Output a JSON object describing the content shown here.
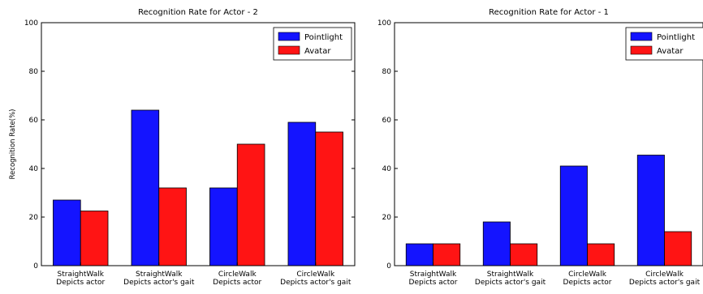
{
  "chart_data": [
    {
      "type": "bar",
      "title": "Recognition Rate for Actor - 2",
      "xlabel": "",
      "ylabel": "Recognition Rate(%)",
      "ylim": [
        0,
        100
      ],
      "yticks": [
        0,
        20,
        40,
        60,
        80,
        100
      ],
      "categories": [
        [
          "StraightWalk",
          "Depicts actor"
        ],
        [
          "StraightWalk",
          "Depicts actor's gait"
        ],
        [
          "CircleWalk",
          "Depicts actor"
        ],
        [
          "CircleWalk",
          "Depicts actor's gait"
        ]
      ],
      "series": [
        {
          "name": "Pointlight",
          "color": "#1414ff",
          "values": [
            27,
            64,
            32,
            59
          ]
        },
        {
          "name": "Avatar",
          "color": "#ff1414",
          "values": [
            22.5,
            32,
            50,
            55
          ]
        }
      ],
      "legend": "top-right",
      "grid": false
    },
    {
      "type": "bar",
      "title": "Recognition Rate for Actor - 1",
      "xlabel": "",
      "ylabel": "",
      "ylim": [
        0,
        100
      ],
      "yticks": [
        0,
        20,
        40,
        60,
        80,
        100
      ],
      "categories": [
        [
          "StraightWalk",
          "Depicts actor"
        ],
        [
          "StraightWalk",
          "Depicts actor's gait"
        ],
        [
          "CircleWalk",
          "Depicts actor"
        ],
        [
          "CircleWalk",
          "Depicts actor's gait"
        ]
      ],
      "series": [
        {
          "name": "Pointlight",
          "color": "#1414ff",
          "values": [
            9,
            18,
            41,
            45.5
          ]
        },
        {
          "name": "Avatar",
          "color": "#ff1414",
          "values": [
            9,
            9,
            9,
            14
          ]
        }
      ],
      "legend": "top-right",
      "grid": false
    }
  ]
}
